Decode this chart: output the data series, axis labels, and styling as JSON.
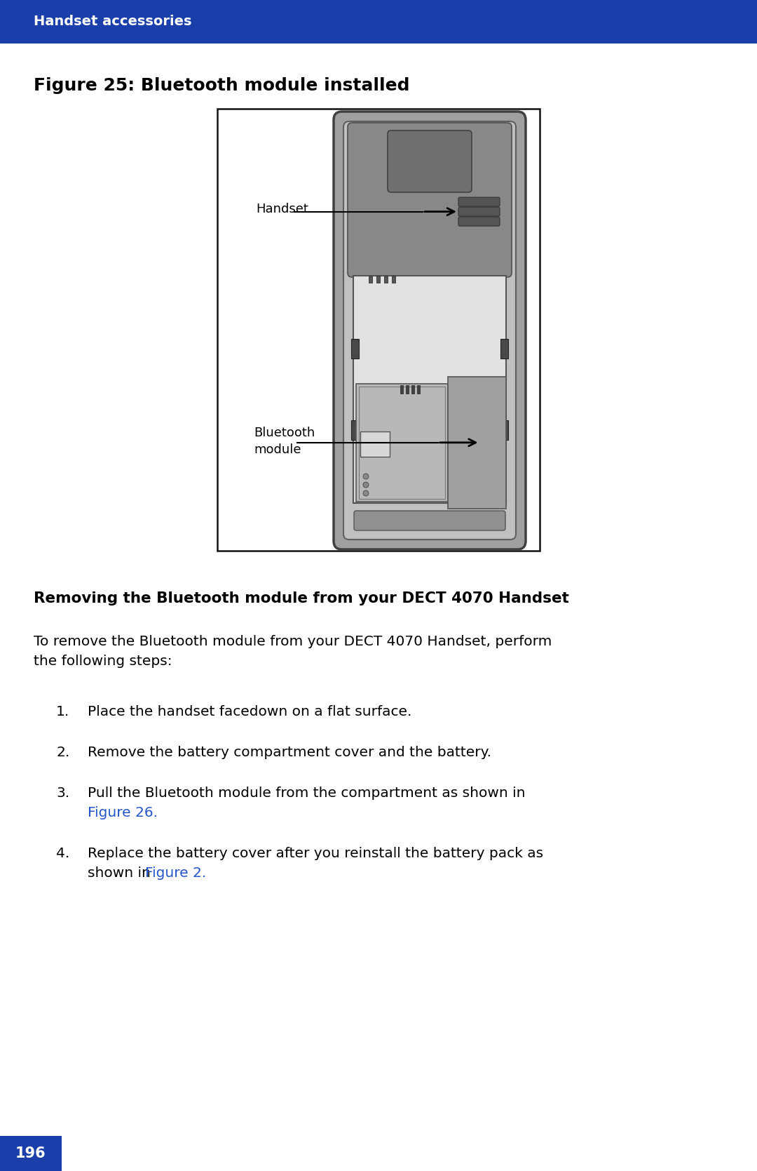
{
  "header_bg_color": "#1a3faa",
  "header_text": "Handset accessories",
  "header_text_color": "#ffffff",
  "page_bg_color": "#ffffff",
  "figure_title": "Figure 25: Bluetooth module installed",
  "figure_title_color": "#000000",
  "section_heading": "Removing the Bluetooth module from your DECT 4070 Handset",
  "section_heading_color": "#000000",
  "intro_line1": "To remove the Bluetooth module from your DECT 4070 Handset, perform",
  "intro_line2": "the following steps:",
  "step1": "Place the handset facedown on a flat surface.",
  "step2": "Remove the battery compartment cover and the battery.",
  "step3_plain": "Pull the Bluetooth module from the compartment as shown in",
  "step3_link": "Figure 26.",
  "step4_plain1": "Replace the battery cover after you reinstall the battery pack as",
  "step4_plain2": "shown in ",
  "step4_link": "Figure 2.",
  "link_color": "#2255cc",
  "footer_bg_color": "#1a3faa",
  "footer_text": "196",
  "footer_text_color": "#ffffff",
  "label_handset": "Handset",
  "label_bluetooth_line1": "Bluetooth",
  "label_bluetooth_line2": "module"
}
